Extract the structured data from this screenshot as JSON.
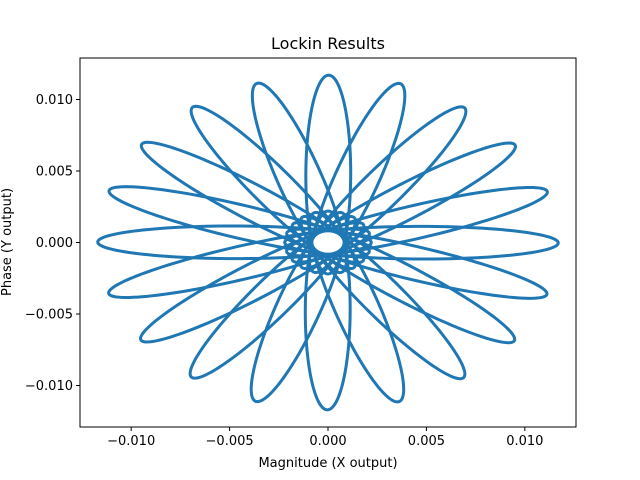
{
  "chart_data": {
    "type": "line",
    "title": "Lockin Results",
    "xlabel": "Magnitude (X output)",
    "ylabel": "Phase (Y output)",
    "xlim": [
      -0.0126,
      0.0126
    ],
    "ylim": [
      -0.0129,
      0.0129
    ],
    "grid": false,
    "legend": "none",
    "xticks": [
      -0.01,
      -0.005,
      0.0,
      0.005,
      0.01
    ],
    "xtick_labels": [
      "−0.010",
      "−0.005",
      "0.000",
      "0.005",
      "0.010"
    ],
    "yticks": [
      -0.01,
      -0.005,
      0.0,
      0.005,
      0.01
    ],
    "ytick_labels": [
      "−0.010",
      "−0.005",
      "0.000",
      "0.005",
      "0.010"
    ],
    "series": [
      {
        "color": "#1f77b4",
        "description_values": "rose curve x=a*cos(k*t)*cos(t)+..., amplitude ~0.0117, 20 lobes, inner hole radius ~0.0022",
        "rose": {
          "outer_radius": 0.0117,
          "inner_radius": 0.0022,
          "lobes": 20,
          "rotation_deg": 97
        }
      }
    ]
  }
}
